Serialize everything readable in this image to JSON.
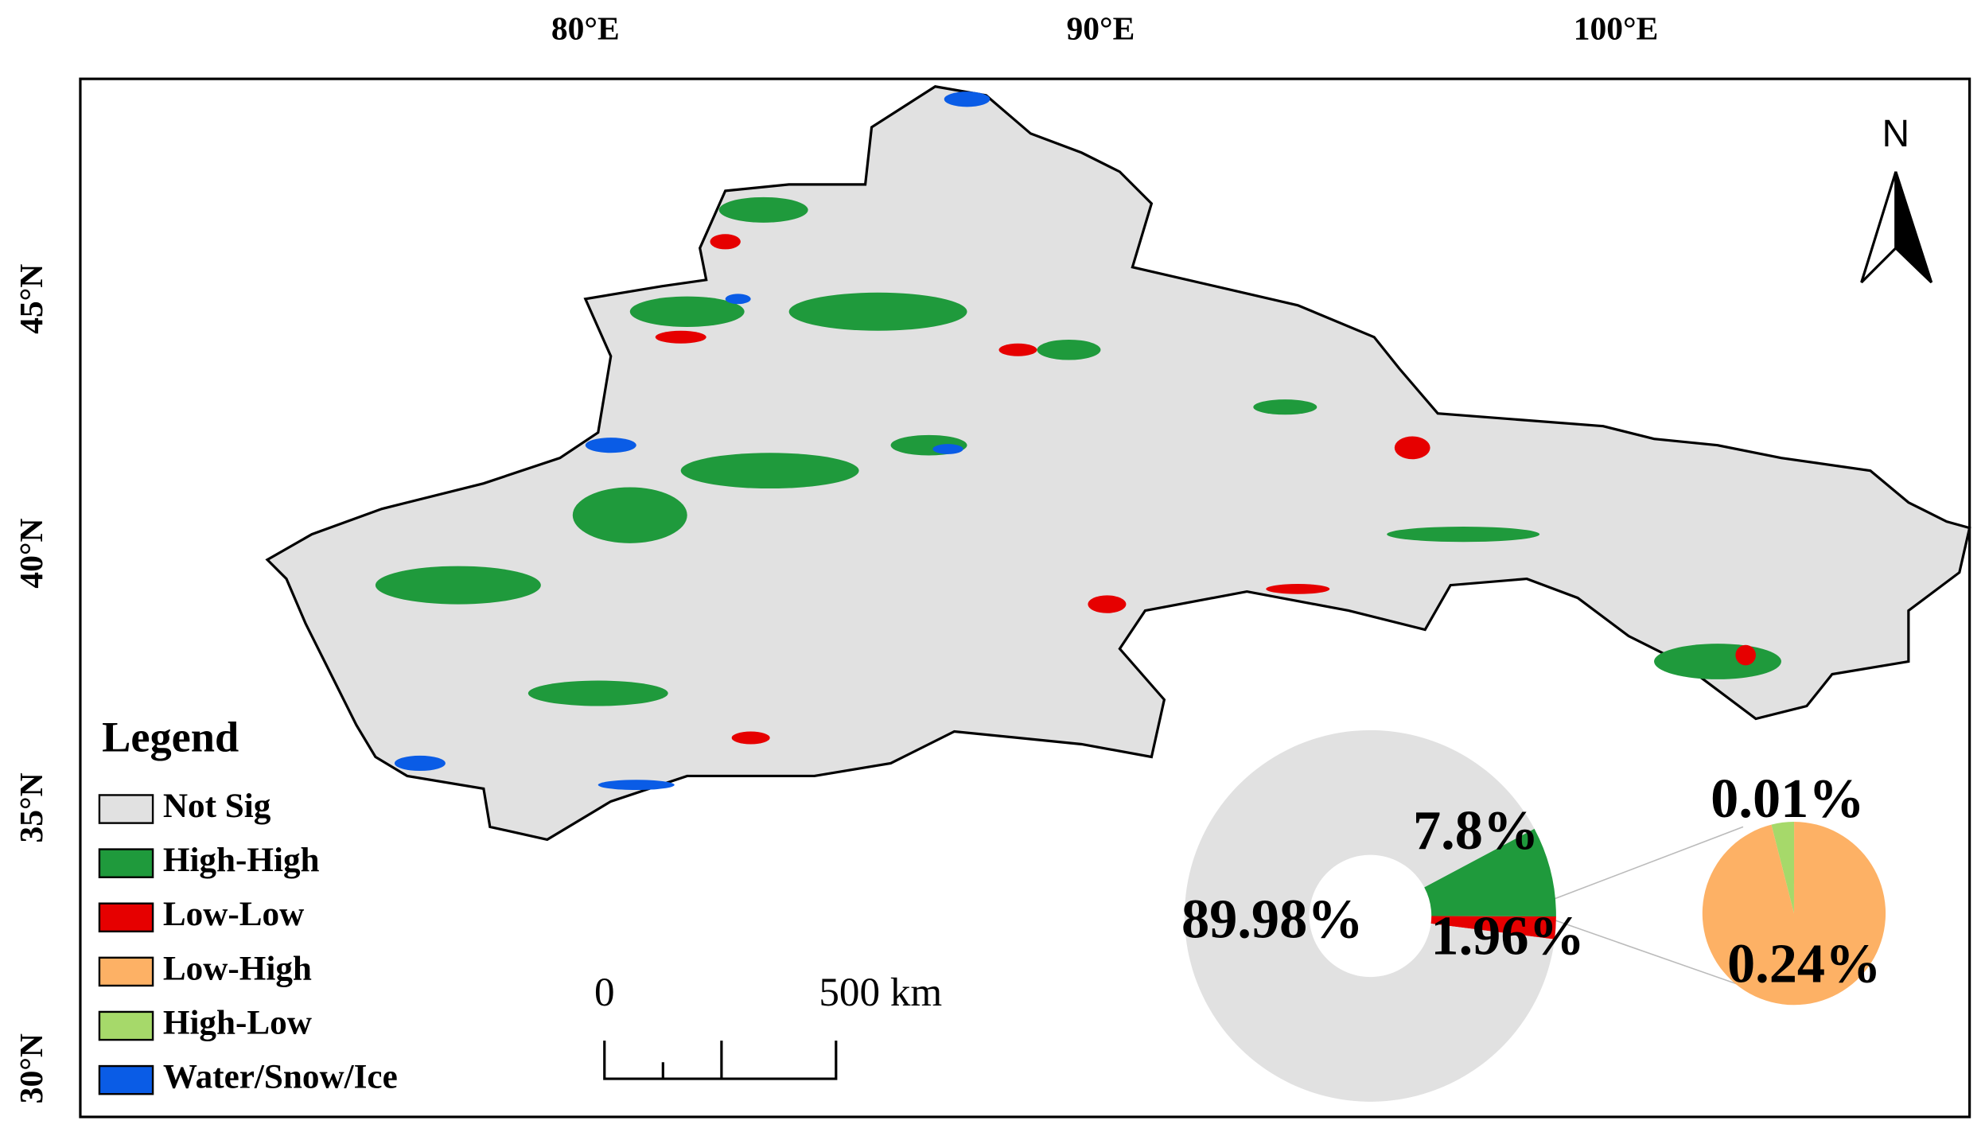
{
  "map": {
    "lon_labels": [
      "80°E",
      "90°E",
      "100°E"
    ],
    "lat_labels": [
      "45°N",
      "40°N",
      "35°N",
      "30°N"
    ],
    "north": "N",
    "legend": {
      "title": "Legend",
      "items": [
        {
          "label": "Not Sig",
          "color": "#e1e1e1"
        },
        {
          "label": "High-High",
          "color": "#1f9a3c"
        },
        {
          "label": "Low-Low",
          "color": "#e60000"
        },
        {
          "label": "Low-High",
          "color": "#fdb165"
        },
        {
          "label": "High-Low",
          "color": "#a6d96a"
        },
        {
          "label": "Water/Snow/Ice",
          "color": "#0a5ce6"
        }
      ]
    },
    "scale_bar": {
      "start": "0",
      "end": "500 km"
    },
    "donut": {
      "slices": [
        {
          "value": 7.8,
          "label": "7.8%",
          "color": "#1f9a3c"
        },
        {
          "value": 1.96,
          "label": "1.96%",
          "color": "#e60000"
        },
        {
          "value": 89.98,
          "label": "89.98%",
          "color": "#e1e1e1"
        }
      ]
    },
    "detail_pie": {
      "slices": [
        {
          "value": 0.01,
          "label": "0.01%",
          "color": "#a6d96a"
        },
        {
          "value": 0.24,
          "label": "0.24%",
          "color": "#fdb165"
        }
      ]
    }
  }
}
